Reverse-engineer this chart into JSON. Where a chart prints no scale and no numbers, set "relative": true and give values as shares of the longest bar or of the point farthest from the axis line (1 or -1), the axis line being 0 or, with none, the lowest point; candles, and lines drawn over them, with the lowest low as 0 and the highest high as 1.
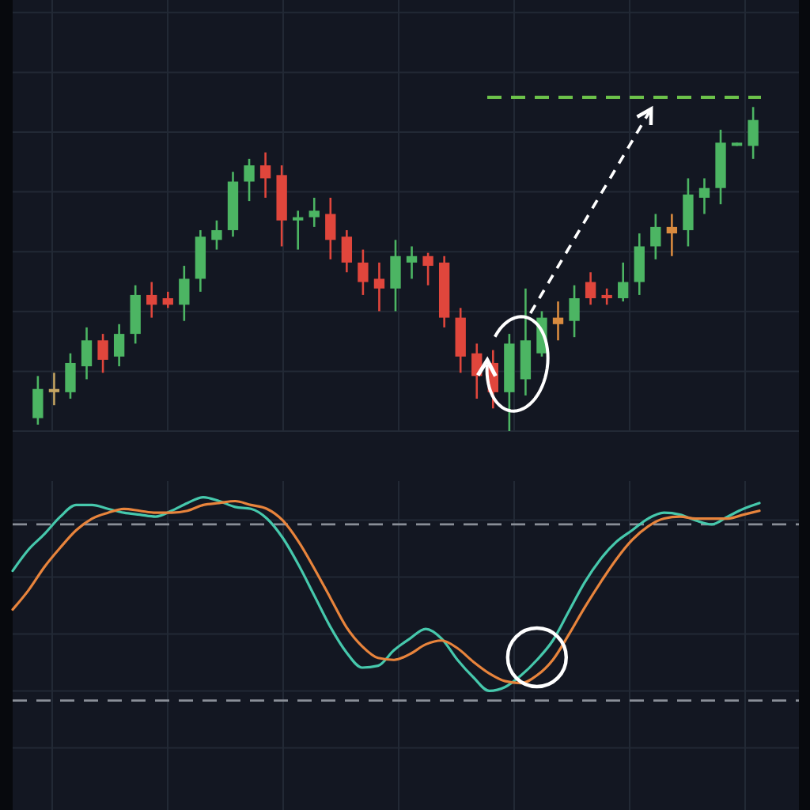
{
  "chart_data": [
    {
      "type": "candlestick",
      "relative": true,
      "grid": true,
      "tick_labels": false,
      "categories": [
        null,
        null,
        null,
        null,
        null,
        null,
        null,
        null,
        null,
        null,
        null,
        null,
        null,
        null,
        null,
        null,
        null,
        null,
        null,
        null,
        null,
        null,
        null,
        null,
        null,
        null,
        null,
        null,
        null,
        null,
        null,
        null,
        null,
        null,
        null,
        null,
        null,
        null,
        null,
        null,
        null,
        null,
        null,
        null,
        null
      ],
      "ohlc": [
        [
          0.04,
          0.17,
          0.02,
          0.13
        ],
        [
          0.12,
          0.18,
          0.08,
          0.13
        ],
        [
          0.12,
          0.24,
          0.1,
          0.21
        ],
        [
          0.2,
          0.32,
          0.16,
          0.28
        ],
        [
          0.28,
          0.3,
          0.18,
          0.22
        ],
        [
          0.23,
          0.33,
          0.2,
          0.3
        ],
        [
          0.3,
          0.45,
          0.27,
          0.42
        ],
        [
          0.42,
          0.46,
          0.35,
          0.39
        ],
        [
          0.41,
          0.43,
          0.38,
          0.39
        ],
        [
          0.39,
          0.51,
          0.34,
          0.47
        ],
        [
          0.47,
          0.62,
          0.43,
          0.6
        ],
        [
          0.59,
          0.65,
          0.56,
          0.62
        ],
        [
          0.62,
          0.8,
          0.6,
          0.77
        ],
        [
          0.77,
          0.84,
          0.71,
          0.82
        ],
        [
          0.82,
          0.86,
          0.72,
          0.78
        ],
        [
          0.79,
          0.82,
          0.57,
          0.65
        ],
        [
          0.65,
          0.68,
          0.56,
          0.66
        ],
        [
          0.66,
          0.72,
          0.63,
          0.68
        ],
        [
          0.67,
          0.72,
          0.53,
          0.59
        ],
        [
          0.6,
          0.62,
          0.49,
          0.52
        ],
        [
          0.52,
          0.56,
          0.42,
          0.46
        ],
        [
          0.47,
          0.52,
          0.37,
          0.44
        ],
        [
          0.44,
          0.59,
          0.37,
          0.54
        ],
        [
          0.52,
          0.57,
          0.47,
          0.54
        ],
        [
          0.54,
          0.55,
          0.45,
          0.51
        ],
        [
          0.52,
          0.54,
          0.32,
          0.35
        ],
        [
          0.35,
          0.38,
          0.18,
          0.23
        ],
        [
          0.24,
          0.27,
          0.1,
          0.17
        ],
        [
          0.21,
          0.25,
          0.07,
          0.12
        ],
        [
          0.12,
          0.3,
          0,
          0.27
        ],
        [
          0.16,
          0.44,
          0.11,
          0.28
        ],
        [
          0.24,
          0.37,
          0.23,
          0.35
        ],
        [
          0.35,
          0.4,
          0.28,
          0.33
        ],
        [
          0.34,
          0.45,
          0.29,
          0.41
        ],
        [
          0.46,
          0.49,
          0.39,
          0.41
        ],
        [
          0.42,
          0.44,
          0.39,
          0.41
        ],
        [
          0.41,
          0.52,
          0.4,
          0.46
        ],
        [
          0.46,
          0.61,
          0.42,
          0.57
        ],
        [
          0.57,
          0.67,
          0.53,
          0.63
        ],
        [
          0.63,
          0.67,
          0.54,
          0.61
        ],
        [
          0.62,
          0.78,
          0.57,
          0.73
        ],
        [
          0.72,
          0.78,
          0.67,
          0.75
        ],
        [
          0.75,
          0.93,
          0.7,
          0.89
        ],
        [
          0.88,
          0.89,
          0.88,
          0.89
        ],
        [
          0.88,
          1,
          0.84,
          0.96
        ]
      ],
      "colors": [
        "#4cb563",
        "#c4a462",
        "#4cb563",
        "#4cb563",
        "#e0463c",
        "#4cb563",
        "#4cb563",
        "#e0463c",
        "#e0463c",
        "#4cb563",
        "#4cb563",
        "#4cb563",
        "#4cb563",
        "#4cb563",
        "#e0463c",
        "#e0463c",
        "#4cb563",
        "#4cb563",
        "#e0463c",
        "#e0463c",
        "#e0463c",
        "#e0463c",
        "#4cb563",
        "#4cb563",
        "#e0463c",
        "#e0463c",
        "#e0463c",
        "#e0463c",
        "#e0463c",
        "#4cb563",
        "#4cb563",
        "#4cb563",
        "#d98b3f",
        "#4cb563",
        "#e0463c",
        "#e0463c",
        "#4cb563",
        "#4cb563",
        "#4cb563",
        "#d98b3f",
        "#4cb563",
        "#4cb563",
        "#4cb563",
        "#4cb563",
        "#4cb563"
      ],
      "ref_lines": [
        {
          "axis": "y",
          "value": 1.03,
          "color": "#6cc24a",
          "line_style": "dashed"
        }
      ]
    },
    {
      "type": "line",
      "relative": true,
      "grid": true,
      "tick_labels": false,
      "categories": [
        null,
        null,
        null,
        null,
        null,
        null,
        null,
        null,
        null,
        null,
        null,
        null,
        null,
        null,
        null,
        null,
        null,
        null,
        null,
        null,
        null,
        null,
        null,
        null,
        null,
        null,
        null,
        null,
        null,
        null,
        null,
        null,
        null,
        null,
        null,
        null,
        null,
        null,
        null,
        null,
        null,
        null,
        null,
        null,
        null,
        null,
        null,
        null
      ],
      "series": [
        {
          "color": "#46c8ac",
          "values": [
            0.62,
            0.73,
            0.81,
            0.9,
            0.96,
            0.96,
            0.94,
            0.92,
            0.91,
            0.9,
            0.93,
            0.97,
            1,
            0.98,
            0.95,
            0.94,
            0.89,
            0.79,
            0.65,
            0.49,
            0.33,
            0.2,
            0.12,
            0.13,
            0.21,
            0.27,
            0.32,
            0.27,
            0.16,
            0.07,
            0,
            0.02,
            0.08,
            0.16,
            0.26,
            0.41,
            0.56,
            0.68,
            0.77,
            0.83,
            0.89,
            0.92,
            0.91,
            0.88,
            0.86,
            0.9,
            0.94,
            0.97
          ]
        },
        {
          "color": "#e8843c",
          "values": [
            0.42,
            0.52,
            0.64,
            0.74,
            0.83,
            0.89,
            0.92,
            0.94,
            0.93,
            0.92,
            0.92,
            0.93,
            0.96,
            0.97,
            0.98,
            0.96,
            0.94,
            0.88,
            0.77,
            0.63,
            0.48,
            0.33,
            0.23,
            0.17,
            0.16,
            0.19,
            0.24,
            0.26,
            0.22,
            0.15,
            0.09,
            0.05,
            0.04,
            0.08,
            0.16,
            0.29,
            0.43,
            0.56,
            0.68,
            0.78,
            0.85,
            0.89,
            0.9,
            0.89,
            0.89,
            0.89,
            0.91,
            0.93
          ]
        }
      ],
      "ref_lines": [
        {
          "axis": "y",
          "value": 0.86,
          "color": "#8a8f98",
          "line_style": "dashed"
        },
        {
          "axis": "y",
          "value": -0.05,
          "color": "#8a8f98",
          "line_style": "dashed"
        }
      ]
    }
  ]
}
